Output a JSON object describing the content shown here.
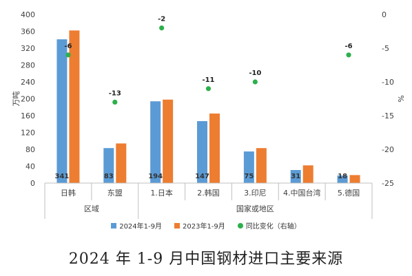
{
  "caption": "2024 年 1-9 月中国钢材进口主要来源",
  "chart_data": {
    "type": "bar",
    "title": "",
    "ylabel": "万吨",
    "y2label": "%",
    "ylim": [
      0,
      400
    ],
    "y2lim": [
      -25,
      0
    ],
    "yticks": [
      0,
      40,
      80,
      120,
      160,
      200,
      240,
      280,
      320,
      360,
      400
    ],
    "y2ticks": [
      0,
      -5,
      -10,
      -15,
      -20,
      -25
    ],
    "categories": [
      "日韩",
      "东盟",
      "1.日本",
      "2.韩国",
      "3.印尼",
      "4.中国台湾",
      "5.德国"
    ],
    "groups": [
      {
        "name": "区域",
        "categories": [
          "日韩",
          "东盟"
        ]
      },
      {
        "name": "国家或地区",
        "categories": [
          "1.日本",
          "2.韩国",
          "3.印尼",
          "4.中国台湾",
          "5.德国"
        ]
      }
    ],
    "series": [
      {
        "name": "2024年1-9月",
        "type": "bar",
        "color": "#5b9bd5",
        "values": [
          341,
          83,
          194,
          147,
          75,
          31,
          18
        ]
      },
      {
        "name": "2023年1-9月",
        "type": "bar",
        "color": "#ed7d31",
        "values": [
          362,
          94,
          198,
          165,
          83,
          42,
          19
        ]
      },
      {
        "name": "同比变化（右轴）",
        "type": "scatter",
        "axis": "right",
        "color": "#2db04b",
        "values": [
          -6,
          -13,
          -2,
          -11,
          -10,
          null,
          -6
        ]
      }
    ],
    "legend_position": "bottom",
    "grid": false
  }
}
